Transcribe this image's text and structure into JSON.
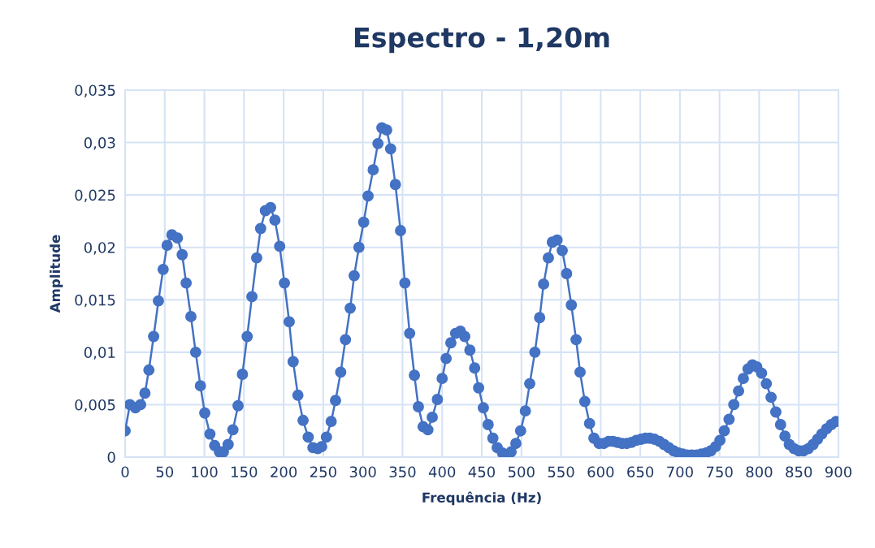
{
  "chart_data": {
    "type": "line",
    "title": "Espectro - 1,20m",
    "xlabel": "Frequência (Hz)",
    "ylabel": "Amplitude",
    "x": [
      0,
      6,
      13,
      19.5,
      25,
      30,
      36,
      42,
      48,
      53,
      59,
      66,
      72,
      77,
      83,
      89,
      95,
      100.5,
      107,
      113,
      119,
      124,
      130,
      136,
      142.5,
      148,
      154,
      160,
      166,
      171,
      177,
      183.5,
      189,
      195,
      201,
      207,
      212,
      218,
      224.5,
      231,
      237,
      243,
      248,
      254,
      260,
      265.5,
      272,
      278,
      284,
      289,
      295,
      301,
      306.5,
      313,
      319,
      324,
      330,
      335,
      341,
      347.5,
      353,
      359,
      365,
      370,
      376,
      382,
      387.5,
      394,
      400,
      405,
      411,
      417,
      423,
      428.5,
      435,
      441,
      446,
      452,
      458,
      464,
      469.5,
      476,
      482,
      487,
      493,
      499,
      505,
      510.5,
      517,
      523,
      528,
      534,
      539,
      545,
      551.5,
      557,
      563,
      569,
      574,
      580,
      586,
      591.5,
      598,
      604,
      610,
      615.5,
      621,
      627,
      633,
      639,
      645,
      651,
      656.5,
      662,
      668,
      674,
      680,
      686,
      692,
      698,
      703.5,
      709,
      715,
      721,
      727,
      733,
      739,
      745,
      750.5,
      756,
      762,
      768,
      774,
      780,
      786,
      791.5,
      797,
      803,
      809,
      815,
      821,
      827,
      832.5,
      838,
      844,
      850,
      856,
      862,
      868,
      873.5,
      879,
      885,
      891,
      897
    ],
    "series": [
      {
        "color": "#4472c4",
        "values": [
          0.0025,
          0.005,
          0.0047,
          0.005,
          0.0061,
          0.0083,
          0.0115,
          0.0149,
          0.0179,
          0.0202,
          0.0212,
          0.0209,
          0.0193,
          0.0166,
          0.0134,
          0.01,
          0.0068,
          0.0042,
          0.0022,
          0.0011,
          0.0005,
          0.0005,
          0.0012,
          0.0026,
          0.0049,
          0.0079,
          0.0115,
          0.0153,
          0.019,
          0.0218,
          0.0235,
          0.0238,
          0.0226,
          0.0201,
          0.0166,
          0.0129,
          0.0091,
          0.0059,
          0.0035,
          0.0019,
          0.0009,
          0.0008,
          0.001,
          0.0019,
          0.0034,
          0.0054,
          0.0081,
          0.0112,
          0.0142,
          0.0173,
          0.02,
          0.0224,
          0.0249,
          0.0274,
          0.0299,
          0.0314,
          0.0312,
          0.0294,
          0.026,
          0.0216,
          0.0166,
          0.0118,
          0.0078,
          0.0048,
          0.0029,
          0.0026,
          0.0038,
          0.0055,
          0.0075,
          0.0094,
          0.0109,
          0.0118,
          0.012,
          0.0115,
          0.0102,
          0.0085,
          0.0066,
          0.0047,
          0.0031,
          0.0018,
          0.0009,
          0.0004,
          0.0002,
          0.0005,
          0.0013,
          0.0025,
          0.0044,
          0.007,
          0.01,
          0.0133,
          0.0165,
          0.019,
          0.0205,
          0.0207,
          0.0197,
          0.0175,
          0.0145,
          0.0112,
          0.0081,
          0.0053,
          0.0032,
          0.0018,
          0.0013,
          0.0013,
          0.0015,
          0.0015,
          0.0014,
          0.0013,
          0.0013,
          0.0014,
          0.0016,
          0.0017,
          0.0018,
          0.0018,
          0.0017,
          0.0015,
          0.0012,
          0.0009,
          0.0006,
          0.0004,
          0.0003,
          0.0002,
          0.0002,
          0.0002,
          0.0003,
          0.0004,
          0.0006,
          0.001,
          0.0016,
          0.0025,
          0.0036,
          0.005,
          0.0063,
          0.0075,
          0.0084,
          0.0088,
          0.0086,
          0.008,
          0.007,
          0.0057,
          0.0043,
          0.0031,
          0.002,
          0.0012,
          0.0008,
          0.0006,
          0.0006,
          0.0008,
          0.0012,
          0.0017,
          0.0022,
          0.0027,
          0.0031,
          0.0034
        ]
      }
    ],
    "xlim": [
      0,
      900
    ],
    "xticks": [
      0,
      50,
      100,
      150,
      200,
      250,
      300,
      350,
      400,
      450,
      500,
      550,
      600,
      650,
      700,
      750,
      800,
      850,
      900
    ],
    "ylim": [
      0,
      0.035
    ],
    "yticks": [
      0,
      {
        "value": 0.005,
        "label": "0,005"
      },
      {
        "value": 0.01,
        "label": "0,01"
      },
      {
        "value": 0.015,
        "label": "0,015"
      },
      {
        "value": 0.02,
        "label": "0,02"
      },
      {
        "value": 0.025,
        "label": "0,025"
      },
      {
        "value": 0.03,
        "label": "0,03"
      },
      {
        "value": 0.035,
        "label": "0,035"
      }
    ],
    "grid": true,
    "marker": "circle",
    "line_style": "solid"
  }
}
